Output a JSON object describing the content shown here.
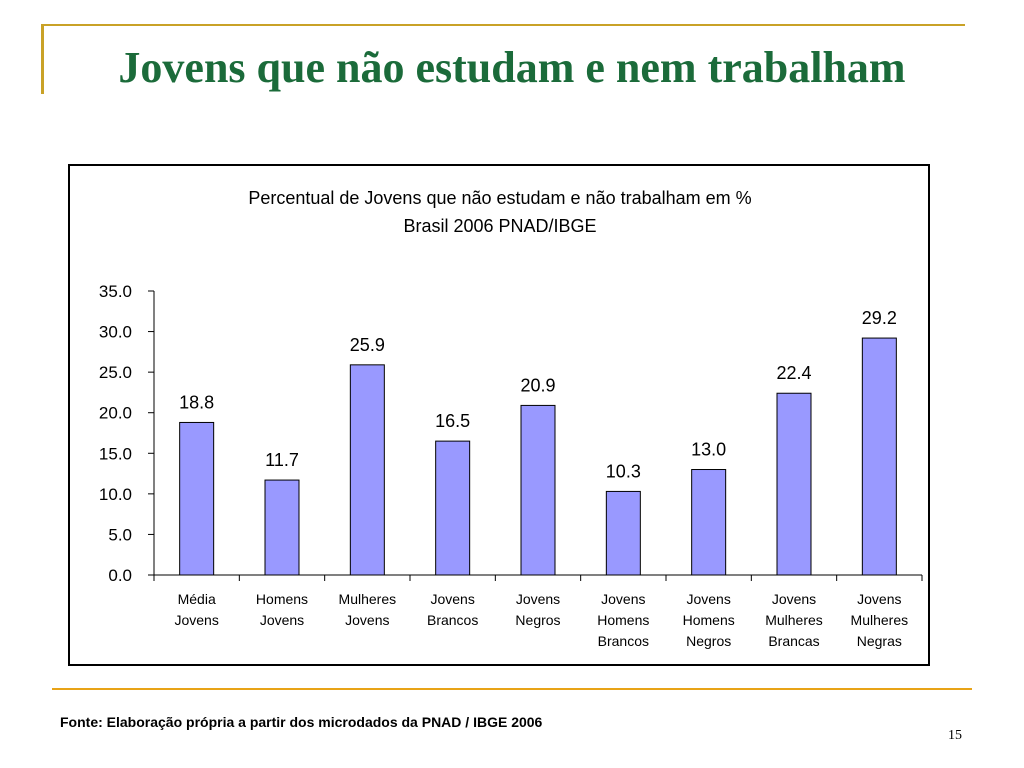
{
  "slide": {
    "title": "Jovens que não estudam e nem trabalham",
    "source": "Fonte: Elaboração própria a partir dos microdados da PNAD / IBGE 2006",
    "page_number": "15",
    "colors": {
      "title": "#1B6B3A",
      "accent_gold": "#C9A227",
      "accent_orange": "#E8A317"
    }
  },
  "chart_data": {
    "type": "bar",
    "title": "Percentual de Jovens que não estudam e não trabalham em %",
    "subtitle": "Brasil 2006 PNAD/IBGE",
    "categories": [
      [
        "Média",
        "Jovens"
      ],
      [
        "Homens",
        "Jovens"
      ],
      [
        "Mulheres",
        "Jovens"
      ],
      [
        "Jovens",
        "Brancos"
      ],
      [
        "Jovens",
        "Negros"
      ],
      [
        "Jovens",
        "Homens",
        "Brancos"
      ],
      [
        "Jovens",
        "Homens",
        "Negros"
      ],
      [
        "Jovens",
        "Mulheres",
        "Brancas"
      ],
      [
        "Jovens",
        "Mulheres",
        "Negras"
      ]
    ],
    "values": [
      18.8,
      11.7,
      25.9,
      16.5,
      20.9,
      10.3,
      13.0,
      22.4,
      29.2
    ],
    "value_labels": [
      "18.8",
      "11.7",
      "25.9",
      "16.5",
      "20.9",
      "10.3",
      "13.0",
      "22.4",
      "29.2"
    ],
    "ylim": [
      0,
      35
    ],
    "yticks": [
      "0.0",
      "5.0",
      "10.0",
      "15.0",
      "20.0",
      "25.0",
      "30.0",
      "35.0"
    ],
    "ytick_values": [
      0,
      5,
      10,
      15,
      20,
      25,
      30,
      35
    ],
    "grid": false,
    "bar_color": "#9999FF",
    "bar_border": "#000000"
  }
}
